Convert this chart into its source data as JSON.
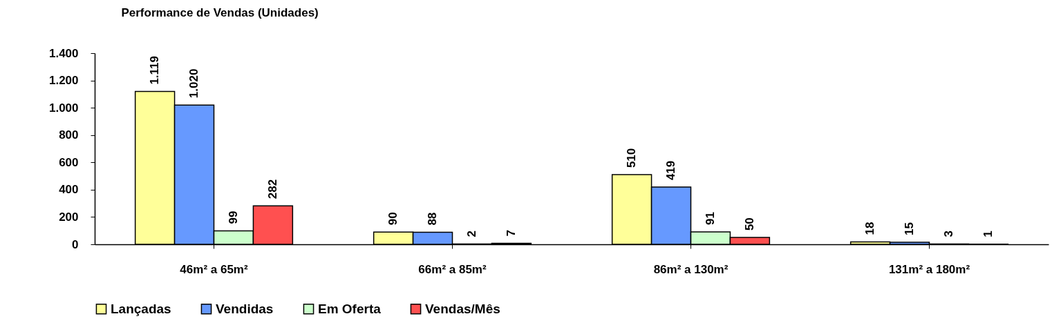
{
  "chart_data": {
    "type": "bar",
    "title": "Performance de Vendas (Unidades)",
    "categories": [
      "46m² a 65m²",
      "66m² a 85m²",
      "86m² a 130m²",
      "131m² a 180m²"
    ],
    "series": [
      {
        "name": "Lançadas",
        "color": "#ffff99",
        "values": [
          1119,
          90,
          510,
          18
        ],
        "value_labels": [
          "1.119",
          "90",
          "510",
          "18"
        ]
      },
      {
        "name": "Vendidas",
        "color": "#6699ff",
        "values": [
          1020,
          88,
          419,
          15
        ],
        "value_labels": [
          "1.020",
          "88",
          "419",
          "15"
        ]
      },
      {
        "name": "Em Oferta",
        "color": "#ccffcc",
        "values": [
          99,
          2,
          91,
          3
        ],
        "value_labels": [
          "99",
          "2",
          "91",
          "3"
        ]
      },
      {
        "name": "Vendas/Mês",
        "color": "#ff5050",
        "values": [
          282,
          7,
          50,
          1
        ],
        "value_labels": [
          "282",
          "7",
          "50",
          "1"
        ]
      }
    ],
    "ylim": [
      0,
      1400
    ],
    "yticks": [
      0,
      200,
      400,
      600,
      800,
      {
        "value": 1000,
        "label": "1.000"
      },
      {
        "value": 1200,
        "label": "1.200"
      },
      {
        "value": 1400,
        "label": "1.400"
      }
    ],
    "legend": "bottom"
  }
}
